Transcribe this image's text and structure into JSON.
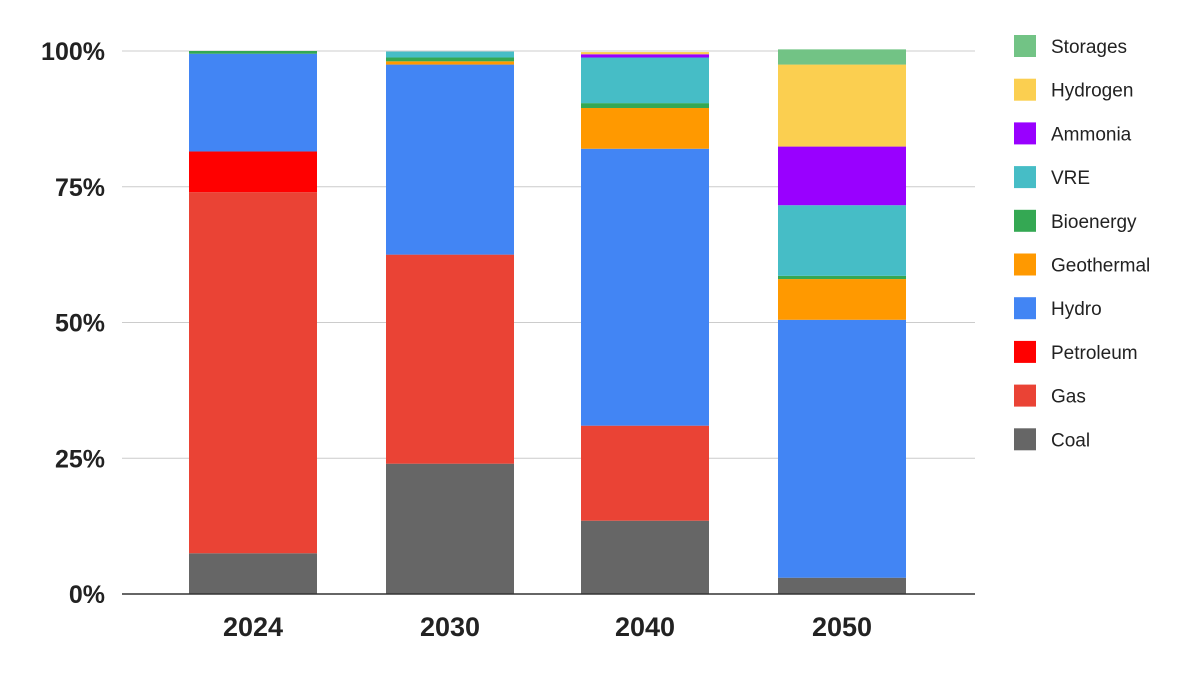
{
  "chart_data": {
    "type": "bar",
    "stacked": true,
    "percent_stacked": true,
    "categories": [
      "2024",
      "2030",
      "2040",
      "2050"
    ],
    "y_ticks": [
      "0%",
      "25%",
      "50%",
      "75%",
      "100%"
    ],
    "ylim": [
      0,
      100
    ],
    "grid": true,
    "legend_position": "right",
    "series": [
      {
        "name": "Coal",
        "color": "#666666",
        "values": [
          7.5,
          24,
          13.5,
          3
        ]
      },
      {
        "name": "Gas",
        "color": "#EA4335",
        "values": [
          66.5,
          38.5,
          17.5,
          0
        ]
      },
      {
        "name": "Petroleum",
        "color": "#FF0000",
        "values": [
          7.5,
          0,
          0,
          0
        ]
      },
      {
        "name": "Hydro",
        "color": "#4285F4",
        "values": [
          18,
          35,
          51,
          47.5
        ]
      },
      {
        "name": "Geothermal",
        "color": "#FF9900",
        "values": [
          0,
          0.6,
          7.5,
          7.5
        ]
      },
      {
        "name": "Bioenergy",
        "color": "#34A853",
        "values": [
          0.5,
          0.7,
          0.9,
          0.6
        ]
      },
      {
        "name": "VRE",
        "color": "#46BDC6",
        "values": [
          0,
          1.1,
          8.4,
          13
        ]
      },
      {
        "name": "Ammonia",
        "color": "#9900FF",
        "values": [
          0,
          0,
          0.6,
          10.8
        ]
      },
      {
        "name": "Hydrogen",
        "color": "#FBCF50",
        "values": [
          0,
          0,
          0.4,
          15.1
        ]
      },
      {
        "name": "Storages",
        "color": "#72C385",
        "values": [
          0,
          0,
          0,
          2.8
        ]
      }
    ]
  }
}
